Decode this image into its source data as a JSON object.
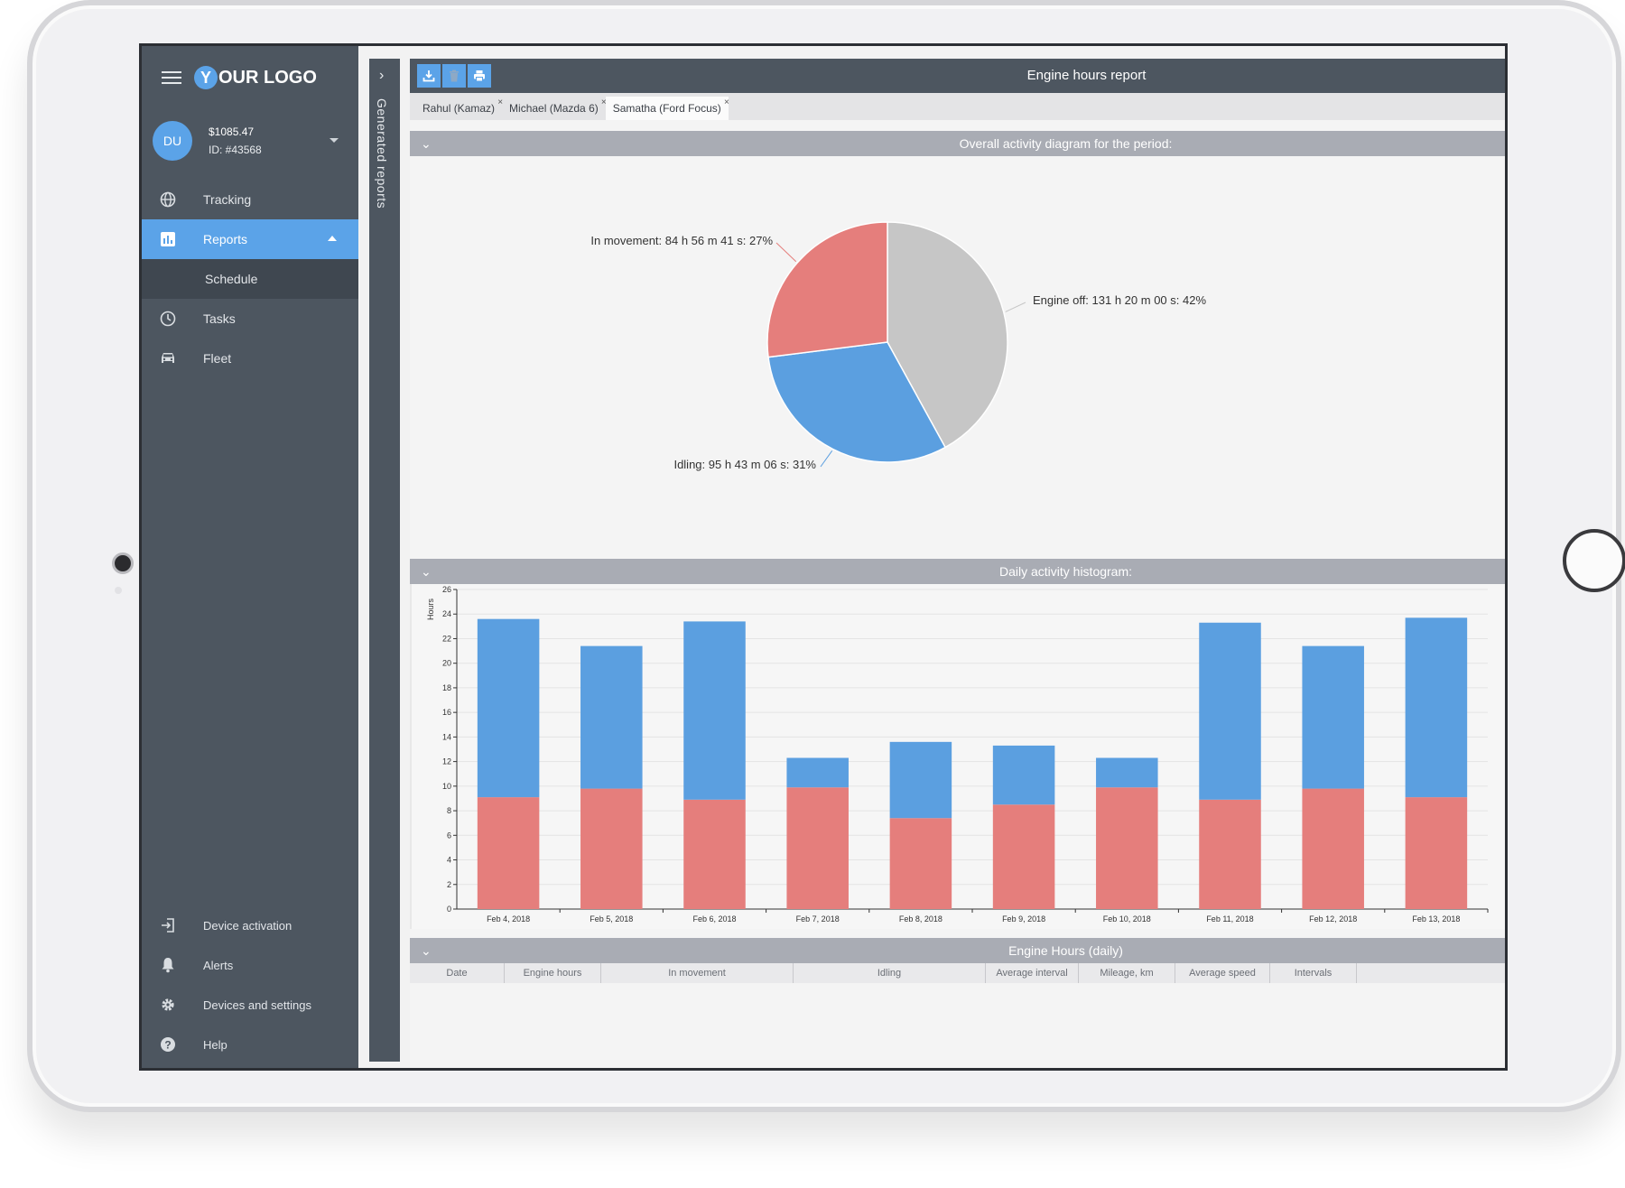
{
  "sidebar": {
    "logo_letter": "Y",
    "logo_text": "OUR LOGO",
    "account": {
      "initials": "DU",
      "balance": "$1085.47",
      "id": "ID: #43568"
    },
    "nav": [
      {
        "label": "Tracking",
        "icon": "globe-icon"
      },
      {
        "label": "Reports",
        "icon": "bar-chart-icon",
        "active": true
      },
      {
        "label": "Tasks",
        "icon": "clock-icon"
      },
      {
        "label": "Fleet",
        "icon": "car-icon"
      }
    ],
    "sub_item": "Schedule",
    "bottom": [
      {
        "label": "Device activation",
        "icon": "login-icon"
      },
      {
        "label": "Alerts",
        "icon": "bell-icon"
      },
      {
        "label": "Devices and settings",
        "icon": "gear-icon"
      },
      {
        "label": "Help",
        "icon": "help-icon"
      }
    ]
  },
  "generated_reports": {
    "label": "Generated reports"
  },
  "report": {
    "title": "Engine hours report",
    "tabs": [
      "Rahul (Kamaz)",
      "Michael (Mazda 6)",
      "Samatha (Ford Focus)"
    ],
    "active_tab": 2,
    "sections": {
      "pie": "Overall activity diagram for the period:",
      "histogram": "Daily activity histogram:",
      "table": "Engine Hours (daily)"
    },
    "table_headers": [
      "Date",
      "Engine hours",
      "In movement",
      "Idling",
      "Average interval",
      "Mileage, km",
      "Average speed",
      "Intervals"
    ]
  },
  "chart_data": [
    {
      "type": "pie",
      "title": "Overall activity diagram for the period:",
      "slices": [
        {
          "label": "Engine off: 131 h 20 m 00 s: 42%",
          "value": 42,
          "color": "#c6c6c6"
        },
        {
          "label": "Idling: 95 h 43 m 06 s: 31%",
          "value": 31,
          "color": "#5b9fe0"
        },
        {
          "label": "In movement: 84 h 56 m 41 s: 27%",
          "value": 27,
          "color": "#e57e7c"
        }
      ]
    },
    {
      "type": "bar",
      "stacked": true,
      "title": "Daily activity histogram:",
      "ylabel": "Hours",
      "ylim": [
        0,
        26
      ],
      "yticks": [
        0,
        2,
        4,
        6,
        8,
        10,
        12,
        14,
        16,
        18,
        20,
        22,
        24,
        26
      ],
      "categories": [
        "Feb 4, 2018",
        "Feb 5, 2018",
        "Feb 6, 2018",
        "Feb 7, 2018",
        "Feb 8, 2018",
        "Feb 9, 2018",
        "Feb 10, 2018",
        "Feb 11, 2018",
        "Feb 12, 2018",
        "Feb 13, 2018"
      ],
      "series": [
        {
          "values": [
            9.1,
            9.8,
            8.9,
            9.9,
            7.4,
            8.5,
            9.9,
            8.9,
            9.8,
            9.1
          ],
          "color": "#e57e7c"
        },
        {
          "values": [
            14.5,
            11.6,
            14.5,
            2.4,
            6.2,
            4.8,
            2.4,
            14.4,
            11.6,
            14.6
          ],
          "color": "#5b9fe0"
        }
      ]
    }
  ]
}
